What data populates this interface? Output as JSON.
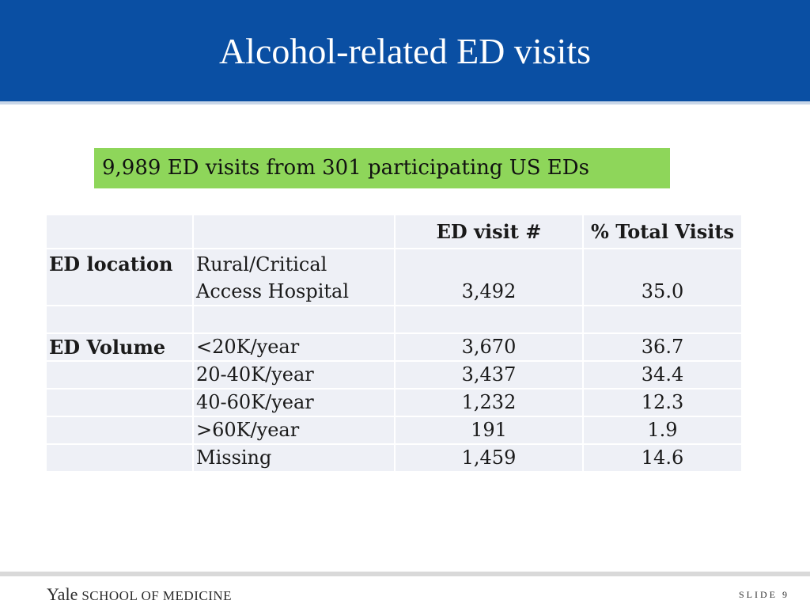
{
  "header": {
    "title": "Alcohol-related ED visits",
    "color": "#0a4fa3"
  },
  "callout": {
    "text": "9,989 ED visits from 301 participating US EDs",
    "color": "#8ed65a"
  },
  "table": {
    "columns": [
      "",
      "",
      "ED visit #",
      "% Total Visits"
    ],
    "location": {
      "label": "ED location",
      "sub_line1": "Rural/Critical",
      "sub_line2": "Access Hospital",
      "visits": "3,492",
      "pct": "35.0"
    },
    "volume_label": "ED Volume",
    "volume_rows": [
      {
        "category": "<20K/year",
        "visits": "3,670",
        "pct": "36.7"
      },
      {
        "category": "20-40K/year",
        "visits": "3,437",
        "pct": "34.4"
      },
      {
        "category": "40-60K/year",
        "visits": "1,232",
        "pct": "12.3"
      },
      {
        "category": ">60K/year",
        "visits": "191",
        "pct": "1.9"
      },
      {
        "category": "Missing",
        "visits": "1,459",
        "pct": "14.6"
      }
    ]
  },
  "footer": {
    "logo_yale": "Yale",
    "logo_school": "SCHOOL OF MEDICINE",
    "slide": "SLIDE 9"
  }
}
